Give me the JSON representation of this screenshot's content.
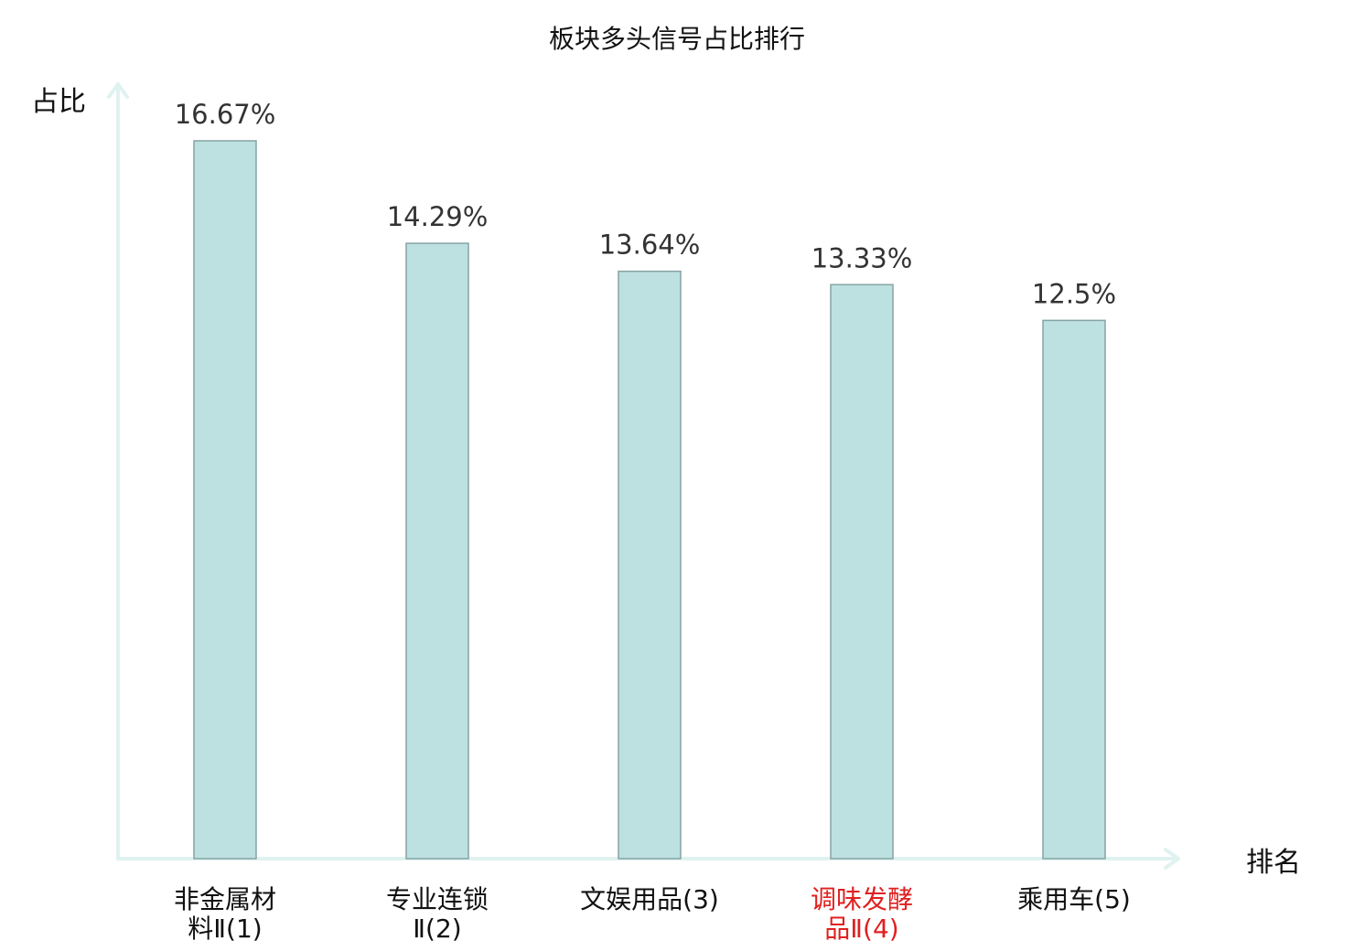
{
  "chart_data": {
    "type": "bar",
    "title": "板块多头信号占比排行",
    "ylabel": "占比",
    "xlabel": "排名",
    "categories": [
      {
        "line1": "非金属材",
        "line2": "料Ⅱ(1)"
      },
      {
        "line1": "专业连锁",
        "line2": "Ⅱ(2)"
      },
      {
        "line1": "文娱用品(3)",
        "line2": ""
      },
      {
        "line1": "调味发酵",
        "line2": "品Ⅱ(4)",
        "highlight": true
      },
      {
        "line1": "乘用车(5)",
        "line2": ""
      }
    ],
    "values": [
      16.67,
      14.29,
      13.64,
      13.33,
      12.5
    ],
    "value_labels": [
      "16.67%",
      "14.29%",
      "13.64%",
      "13.33%",
      "12.5%"
    ],
    "ylim": [
      0,
      16.67
    ],
    "grid": false,
    "colors": {
      "bar_fill": "#bde0e1",
      "bar_stroke": "#86a3a4",
      "axis": "#dff2f0",
      "label": "#111111",
      "highlight_label": "#e02020",
      "value_label": "#333333"
    }
  }
}
